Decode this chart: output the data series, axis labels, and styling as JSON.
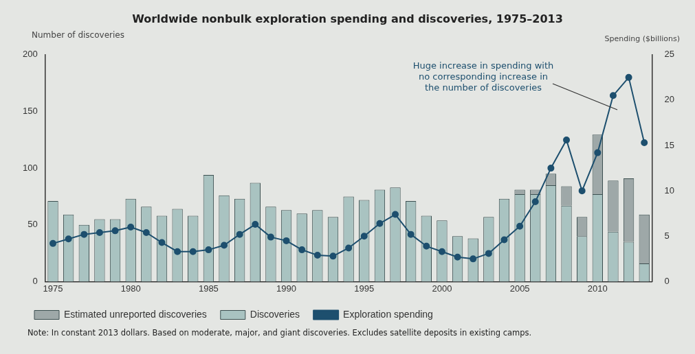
{
  "chart_data": {
    "type": "bar",
    "title": "Worldwide nonbulk exploration spending and discoveries, 1975–2013",
    "ylabel": "Number of discoveries",
    "y2label": "Spending ($billions)",
    "categories": [
      "1975",
      null,
      null,
      null,
      null,
      "1980",
      null,
      null,
      null,
      null,
      "1985",
      null,
      null,
      null,
      null,
      "1990",
      null,
      null,
      null,
      null,
      "1995",
      null,
      null,
      null,
      null,
      "2000",
      null,
      null,
      null,
      null,
      "2005",
      null,
      null,
      null,
      null,
      "2010",
      null,
      null,
      null
    ],
    "stacked": true,
    "series": [
      {
        "name": "Discoveries",
        "color": "#a9c3c1",
        "values": [
          71,
          59,
          50,
          55,
          55,
          73,
          66,
          58,
          64,
          58,
          94,
          76,
          73,
          87,
          66,
          63,
          60,
          63,
          57,
          75,
          72,
          81,
          83,
          71,
          58,
          54,
          40,
          38,
          57,
          73,
          77,
          77,
          85,
          67,
          40,
          77,
          44,
          35,
          16
        ]
      },
      {
        "name": "Estimated unreported discoveries",
        "color": "#9ea8a8",
        "values": [
          null,
          null,
          null,
          null,
          null,
          null,
          null,
          null,
          null,
          null,
          null,
          null,
          null,
          null,
          null,
          null,
          null,
          null,
          null,
          null,
          null,
          null,
          null,
          null,
          null,
          null,
          null,
          null,
          null,
          null,
          4,
          4,
          10,
          17,
          17,
          52.5,
          45,
          56,
          43
        ]
      },
      {
        "name": "Exploration spending",
        "type": "line",
        "axis": "y2",
        "color": "#1d4f6e",
        "values": [
          4.2,
          4.7,
          5.2,
          5.4,
          5.6,
          6.0,
          5.4,
          4.3,
          3.3,
          3.3,
          3.5,
          4.0,
          5.2,
          6.3,
          4.9,
          4.5,
          3.5,
          2.9,
          2.8,
          3.7,
          5.0,
          6.4,
          7.4,
          5.2,
          3.9,
          3.3,
          2.7,
          2.5,
          3.1,
          4.6,
          6.1,
          8.8,
          12.5,
          15.6,
          10.0,
          14.2,
          20.5,
          22.5,
          15.3
        ]
      }
    ],
    "ylim": [
      0,
      200
    ],
    "yticks": [
      0,
      50,
      100,
      150,
      200
    ],
    "y2lim": [
      0,
      25
    ],
    "y2ticks": [
      0,
      5,
      10,
      15,
      20,
      25
    ],
    "grid": false,
    "legend": "bottom",
    "marker": "circle",
    "annotations": [
      "Huge increase in spending with no corresponding increase in the number of discoveries",
      "Note: In constant 2013 dollars. Based on moderate, major, and giant discoveries. Excludes satellite deposits in existing camps."
    ]
  }
}
